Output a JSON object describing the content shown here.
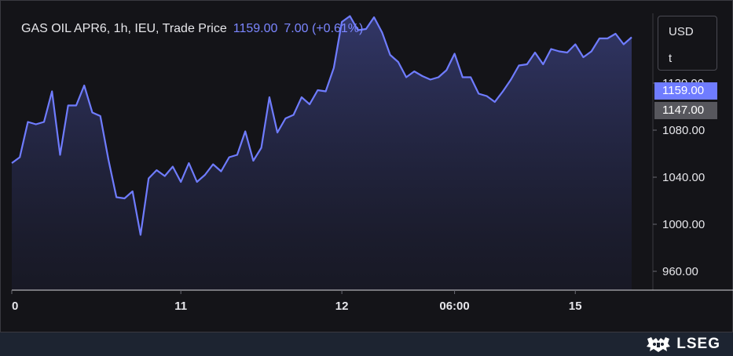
{
  "header": {
    "title": "GAS OIL APR6, 1h, IEU, Trade Price",
    "price": "1159.00",
    "change": "7.00 (+0.61%)"
  },
  "unit_box": {
    "currency": "USD",
    "unit": "t"
  },
  "price_tags": {
    "last": "1159.00",
    "prev": "1147.00"
  },
  "footer": {
    "logo_text": "LSEG"
  },
  "colors": {
    "line": "#6f7cff",
    "background": "#141418",
    "footer": "#1d2431"
  },
  "chart_data": {
    "type": "area",
    "title": "GAS OIL APR6, 1h, IEU, Trade Price",
    "ylim": [
      944,
      1180
    ],
    "yticks": [
      "1120.00",
      "1080.00",
      "1040.00",
      "1000.00",
      "960.00"
    ],
    "xticks": [
      "0",
      "11",
      "12",
      "06:00",
      "15"
    ],
    "grid": false,
    "series": [
      {
        "values": [
          1052,
          1057,
          1087,
          1085,
          1087,
          1113,
          1059,
          1101,
          1101,
          1118,
          1095,
          1092,
          1055,
          1023,
          1022,
          1028,
          991,
          1039,
          1046,
          1041,
          1049,
          1036,
          1052,
          1036,
          1042,
          1051,
          1045,
          1057,
          1059,
          1079,
          1054,
          1065,
          1108,
          1078,
          1090,
          1093,
          1108,
          1102,
          1114,
          1113,
          1133,
          1172,
          1177,
          1165,
          1166,
          1176,
          1163,
          1144,
          1138,
          1125,
          1130,
          1126,
          1123,
          1125,
          1131,
          1145,
          1125,
          1125,
          1111,
          1109,
          1104,
          1113,
          1123,
          1135,
          1136,
          1146,
          1136,
          1149,
          1147,
          1146,
          1153,
          1142,
          1147,
          1158,
          1158,
          1162,
          1153,
          1159
        ]
      }
    ]
  }
}
